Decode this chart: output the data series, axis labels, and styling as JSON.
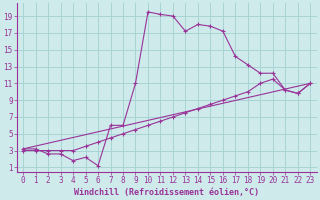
{
  "xlabel": "Windchill (Refroidissement éolien,°C)",
  "bg_color": "#ceeaea",
  "grid_color": "#a8d4d4",
  "line_color": "#993399",
  "spine_color": "#993399",
  "tick_color": "#993399",
  "label_color": "#993399",
  "xlim": [
    -0.5,
    23.5
  ],
  "ylim": [
    0.5,
    20.5
  ],
  "xticks": [
    0,
    1,
    2,
    3,
    4,
    5,
    6,
    7,
    8,
    9,
    10,
    11,
    12,
    13,
    14,
    15,
    16,
    17,
    18,
    19,
    20,
    21,
    22,
    23
  ],
  "yticks": [
    1,
    3,
    5,
    7,
    9,
    11,
    13,
    15,
    17,
    19
  ],
  "series1_x": [
    0,
    1,
    2,
    3,
    4,
    5,
    6,
    7,
    8,
    9,
    10,
    11,
    12,
    13,
    14,
    15,
    16,
    17,
    18,
    19,
    20,
    21,
    22,
    23
  ],
  "series1_y": [
    3.2,
    3.2,
    2.6,
    2.6,
    1.8,
    2.2,
    1.2,
    6,
    6,
    11,
    19.5,
    19.2,
    19.0,
    17.2,
    18.0,
    17.8,
    17.2,
    14.2,
    13.2,
    12.2,
    12.2,
    10.2,
    9.8,
    11.0
  ],
  "series2_x": [
    0,
    1,
    2,
    3,
    4,
    5,
    6,
    7,
    8,
    9,
    10,
    11,
    12,
    13,
    14,
    15,
    16,
    17,
    18,
    19,
    20,
    21,
    22,
    23
  ],
  "series2_y": [
    3.0,
    3.0,
    3.0,
    3.0,
    3.0,
    3.5,
    4.0,
    4.5,
    5.0,
    5.5,
    6.0,
    6.5,
    7.0,
    7.5,
    8.0,
    8.5,
    9.0,
    9.5,
    10.0,
    11.0,
    11.5,
    10.2,
    9.8,
    11.0
  ],
  "series3_x": [
    0,
    23
  ],
  "series3_y": [
    3.2,
    11.0
  ],
  "tick_fontsize": 5.5,
  "label_fontsize": 6.0
}
